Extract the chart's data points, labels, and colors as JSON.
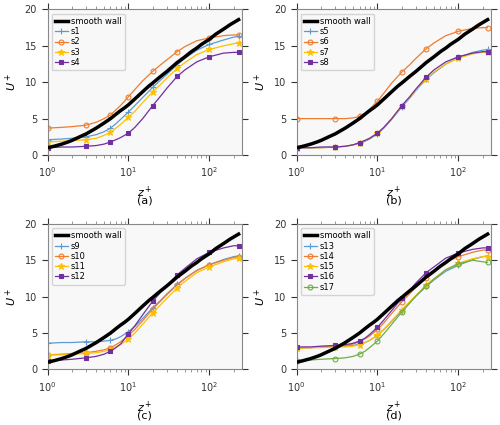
{
  "smooth_wall": {
    "z_plus": [
      1.0,
      1.2,
      1.5,
      1.8,
      2.0,
      2.5,
      3.0,
      4.0,
      5.0,
      6.0,
      7.0,
      8.0,
      9.0,
      10.0,
      12.0,
      15.0,
      18.0,
      20.0,
      25.0,
      30.0,
      40.0,
      50.0,
      60.0,
      70.0,
      80.0,
      100.0,
      120.0,
      150.0,
      180.0,
      200.0,
      230.0
    ],
    "U_plus": [
      1.0,
      1.2,
      1.5,
      1.8,
      2.0,
      2.5,
      2.9,
      3.7,
      4.4,
      5.0,
      5.6,
      6.1,
      6.5,
      6.9,
      7.7,
      8.7,
      9.5,
      9.9,
      10.8,
      11.5,
      12.7,
      13.5,
      14.2,
      14.7,
      15.2,
      15.9,
      16.6,
      17.3,
      17.9,
      18.2,
      18.6
    ]
  },
  "subplots": [
    {
      "label": "(a)",
      "series": [
        {
          "name": "s1",
          "color": "#5b9bd5",
          "marker": "+",
          "markevery": 3,
          "z": [
            1.0,
            1.5,
            2.0,
            3.0,
            4.0,
            5.0,
            6.0,
            7.0,
            8.0,
            10.0,
            12.0,
            15.0,
            20.0,
            25.0,
            30.0,
            40.0,
            50.0,
            70.0,
            100.0,
            150.0,
            200.0,
            230.0
          ],
          "U": [
            2.1,
            2.2,
            2.3,
            2.5,
            2.8,
            3.2,
            3.7,
            4.3,
            4.9,
            5.9,
            6.8,
            7.9,
            9.3,
            10.3,
            11.1,
            12.4,
            13.3,
            14.4,
            15.2,
            15.8,
            16.2,
            16.3
          ]
        },
        {
          "name": "s2",
          "color": "#ed7d31",
          "marker": "o",
          "markevery": 3,
          "z": [
            1.0,
            1.5,
            2.0,
            3.0,
            4.0,
            5.0,
            6.0,
            7.0,
            8.0,
            10.0,
            12.0,
            15.0,
            20.0,
            25.0,
            30.0,
            40.0,
            50.0,
            70.0,
            100.0,
            150.0,
            200.0,
            230.0
          ],
          "U": [
            3.7,
            3.8,
            3.9,
            4.1,
            4.5,
            5.0,
            5.5,
            6.2,
            6.8,
            8.0,
            9.0,
            10.2,
            11.5,
            12.4,
            13.1,
            14.2,
            14.9,
            15.7,
            16.1,
            16.4,
            16.5,
            16.5
          ]
        },
        {
          "name": "s3",
          "color": "#ffc000",
          "marker": "*",
          "markevery": 3,
          "z": [
            1.0,
            1.5,
            2.0,
            3.0,
            4.0,
            5.0,
            6.0,
            7.0,
            8.0,
            10.0,
            12.0,
            15.0,
            20.0,
            25.0,
            30.0,
            40.0,
            50.0,
            70.0,
            100.0,
            150.0,
            200.0,
            230.0
          ],
          "U": [
            1.8,
            1.9,
            2.0,
            2.1,
            2.3,
            2.7,
            3.1,
            3.7,
            4.2,
            5.2,
            6.0,
            7.2,
            8.7,
            9.7,
            10.6,
            11.9,
            12.7,
            13.8,
            14.5,
            15.0,
            15.3,
            15.4
          ]
        },
        {
          "name": "s4",
          "color": "#7030a0",
          "marker": "s",
          "markevery": 3,
          "z": [
            1.0,
            1.5,
            2.0,
            3.0,
            4.0,
            5.0,
            6.0,
            7.0,
            8.0,
            10.0,
            12.0,
            15.0,
            20.0,
            25.0,
            30.0,
            40.0,
            50.0,
            70.0,
            100.0,
            150.0,
            200.0,
            230.0
          ],
          "U": [
            1.0,
            1.1,
            1.1,
            1.2,
            1.3,
            1.5,
            1.8,
            2.1,
            2.4,
            3.0,
            3.8,
            5.0,
            6.8,
            8.1,
            9.2,
            10.8,
            11.7,
            12.8,
            13.5,
            14.0,
            14.1,
            14.1
          ]
        }
      ]
    },
    {
      "label": "(b)",
      "series": [
        {
          "name": "s5",
          "color": "#5b9bd5",
          "marker": "+",
          "markevery": 3,
          "z": [
            1.0,
            1.5,
            2.0,
            3.0,
            4.0,
            5.0,
            6.0,
            7.0,
            8.0,
            10.0,
            12.0,
            15.0,
            20.0,
            25.0,
            30.0,
            40.0,
            50.0,
            70.0,
            100.0,
            150.0,
            200.0,
            230.0
          ],
          "U": [
            1.0,
            1.0,
            1.0,
            1.1,
            1.2,
            1.4,
            1.6,
            1.9,
            2.2,
            2.9,
            3.7,
            4.9,
            6.6,
            7.8,
            8.9,
            10.4,
            11.3,
            12.5,
            13.4,
            14.1,
            14.4,
            14.5
          ]
        },
        {
          "name": "s6",
          "color": "#ed7d31",
          "marker": "o",
          "markevery": 3,
          "z": [
            1.0,
            1.5,
            2.0,
            3.0,
            4.0,
            5.0,
            6.0,
            7.0,
            8.0,
            10.0,
            12.0,
            15.0,
            20.0,
            25.0,
            30.0,
            40.0,
            50.0,
            70.0,
            100.0,
            150.0,
            200.0,
            230.0
          ],
          "U": [
            5.0,
            5.0,
            5.0,
            5.0,
            5.0,
            5.1,
            5.3,
            5.7,
            6.3,
            7.4,
            8.5,
            9.9,
            11.4,
            12.4,
            13.3,
            14.6,
            15.4,
            16.4,
            17.0,
            17.4,
            17.5,
            17.5
          ]
        },
        {
          "name": "s7",
          "color": "#ffc000",
          "marker": "*",
          "markevery": 3,
          "z": [
            1.0,
            1.5,
            2.0,
            3.0,
            4.0,
            5.0,
            6.0,
            7.0,
            8.0,
            10.0,
            12.0,
            15.0,
            20.0,
            25.0,
            30.0,
            40.0,
            50.0,
            70.0,
            100.0,
            150.0,
            200.0,
            230.0
          ],
          "U": [
            1.0,
            1.0,
            1.0,
            1.1,
            1.2,
            1.4,
            1.7,
            2.0,
            2.3,
            3.0,
            3.8,
            5.0,
            6.7,
            7.9,
            9.0,
            10.5,
            11.4,
            12.5,
            13.3,
            13.9,
            14.1,
            14.2
          ]
        },
        {
          "name": "s8",
          "color": "#7030a0",
          "marker": "s",
          "markevery": 3,
          "z": [
            1.0,
            1.5,
            2.0,
            3.0,
            4.0,
            5.0,
            6.0,
            7.0,
            8.0,
            10.0,
            12.0,
            15.0,
            20.0,
            25.0,
            30.0,
            40.0,
            50.0,
            70.0,
            100.0,
            150.0,
            200.0,
            230.0
          ],
          "U": [
            1.0,
            1.0,
            1.1,
            1.1,
            1.2,
            1.4,
            1.7,
            2.0,
            2.3,
            3.0,
            3.8,
            5.0,
            6.8,
            8.0,
            9.1,
            10.7,
            11.7,
            12.8,
            13.5,
            14.0,
            14.2,
            14.2
          ]
        }
      ]
    },
    {
      "label": "(c)",
      "series": [
        {
          "name": "s9",
          "color": "#5b9bd5",
          "marker": "+",
          "markevery": 3,
          "z": [
            1.0,
            1.5,
            2.0,
            3.0,
            4.0,
            5.0,
            6.0,
            7.0,
            8.0,
            10.0,
            12.0,
            15.0,
            20.0,
            25.0,
            30.0,
            40.0,
            50.0,
            70.0,
            100.0,
            150.0,
            200.0,
            230.0
          ],
          "U": [
            3.6,
            3.7,
            3.7,
            3.8,
            3.8,
            3.9,
            4.0,
            4.2,
            4.5,
            5.2,
            5.9,
            7.0,
            8.5,
            9.5,
            10.4,
            11.7,
            12.5,
            13.6,
            14.4,
            15.1,
            15.5,
            15.6
          ]
        },
        {
          "name": "s10",
          "color": "#ed7d31",
          "marker": "o",
          "markevery": 3,
          "z": [
            1.0,
            1.5,
            2.0,
            3.0,
            4.0,
            5.0,
            6.0,
            7.0,
            8.0,
            10.0,
            12.0,
            15.0,
            20.0,
            25.0,
            30.0,
            40.0,
            50.0,
            70.0,
            100.0,
            150.0,
            200.0,
            230.0
          ],
          "U": [
            2.0,
            2.1,
            2.2,
            2.3,
            2.5,
            2.7,
            3.0,
            3.4,
            3.8,
            4.7,
            5.5,
            6.7,
            8.3,
            9.4,
            10.3,
            11.6,
            12.5,
            13.6,
            14.4,
            15.0,
            15.4,
            15.5
          ]
        },
        {
          "name": "s11",
          "color": "#ffc000",
          "marker": "*",
          "markevery": 3,
          "z": [
            1.0,
            1.5,
            2.0,
            3.0,
            4.0,
            5.0,
            6.0,
            7.0,
            8.0,
            10.0,
            12.0,
            15.0,
            20.0,
            25.0,
            30.0,
            40.0,
            50.0,
            70.0,
            100.0,
            150.0,
            200.0,
            230.0
          ],
          "U": [
            2.0,
            2.0,
            2.1,
            2.2,
            2.3,
            2.5,
            2.7,
            3.1,
            3.4,
            4.2,
            5.0,
            6.2,
            7.8,
            8.9,
            9.8,
            11.2,
            12.1,
            13.3,
            14.1,
            14.8,
            15.2,
            15.3
          ]
        },
        {
          "name": "s12",
          "color": "#7030a0",
          "marker": "s",
          "markevery": 3,
          "z": [
            1.0,
            1.5,
            2.0,
            3.0,
            4.0,
            5.0,
            6.0,
            7.0,
            8.0,
            10.0,
            12.0,
            15.0,
            20.0,
            25.0,
            30.0,
            40.0,
            50.0,
            70.0,
            100.0,
            150.0,
            200.0,
            230.0
          ],
          "U": [
            1.2,
            1.3,
            1.4,
            1.6,
            1.8,
            2.1,
            2.5,
            3.0,
            3.5,
            4.9,
            6.0,
            7.5,
            9.4,
            10.6,
            11.5,
            13.0,
            13.9,
            15.2,
            16.1,
            16.7,
            17.0,
            17.0
          ]
        }
      ]
    },
    {
      "label": "(d)",
      "series": [
        {
          "name": "s13",
          "color": "#5b9bd5",
          "marker": "+",
          "markevery": 3,
          "z": [
            1.0,
            1.5,
            2.0,
            3.0,
            4.0,
            5.0,
            6.0,
            7.0,
            8.0,
            10.0,
            12.0,
            15.0,
            20.0,
            25.0,
            30.0,
            40.0,
            50.0,
            70.0,
            100.0,
            150.0,
            200.0,
            230.0
          ],
          "U": [
            3.0,
            3.0,
            3.1,
            3.1,
            3.2,
            3.3,
            3.5,
            3.7,
            4.0,
            4.7,
            5.5,
            6.6,
            8.1,
            9.2,
            10.1,
            11.4,
            12.3,
            13.5,
            14.3,
            15.1,
            15.5,
            15.6
          ]
        },
        {
          "name": "s14",
          "color": "#ed7d31",
          "marker": "o",
          "markevery": 3,
          "z": [
            1.0,
            1.5,
            2.0,
            3.0,
            4.0,
            5.0,
            6.0,
            7.0,
            8.0,
            10.0,
            12.0,
            15.0,
            20.0,
            25.0,
            30.0,
            40.0,
            50.0,
            70.0,
            100.0,
            150.0,
            200.0,
            230.0
          ],
          "U": [
            3.0,
            3.0,
            3.1,
            3.2,
            3.3,
            3.5,
            3.8,
            4.2,
            4.6,
            5.5,
            6.4,
            7.7,
            9.3,
            10.4,
            11.3,
            12.6,
            13.5,
            14.7,
            15.5,
            16.1,
            16.4,
            16.4
          ]
        },
        {
          "name": "s15",
          "color": "#ffc000",
          "marker": "*",
          "markevery": 3,
          "z": [
            1.0,
            1.5,
            2.0,
            3.0,
            4.0,
            5.0,
            6.0,
            7.0,
            8.0,
            10.0,
            12.0,
            15.0,
            20.0,
            25.0,
            30.0,
            40.0,
            50.0,
            70.0,
            100.0,
            150.0,
            200.0,
            230.0
          ],
          "U": [
            2.9,
            3.0,
            3.0,
            3.1,
            3.1,
            3.2,
            3.4,
            3.7,
            4.0,
            4.7,
            5.5,
            6.7,
            8.2,
            9.3,
            10.2,
            11.6,
            12.5,
            13.7,
            14.6,
            15.2,
            15.5,
            15.5
          ]
        },
        {
          "name": "s16",
          "color": "#7030a0",
          "marker": "s",
          "markevery": 3,
          "z": [
            1.0,
            1.5,
            2.0,
            3.0,
            4.0,
            5.0,
            6.0,
            7.0,
            8.0,
            10.0,
            12.0,
            15.0,
            20.0,
            25.0,
            30.0,
            40.0,
            50.0,
            70.0,
            100.0,
            150.0,
            200.0,
            230.0
          ],
          "U": [
            3.1,
            3.1,
            3.2,
            3.3,
            3.4,
            3.6,
            3.9,
            4.3,
            4.8,
            5.8,
            6.8,
            8.1,
            9.8,
            10.9,
            11.9,
            13.3,
            14.1,
            15.3,
            16.0,
            16.5,
            16.7,
            16.7
          ]
        },
        {
          "name": "s17",
          "color": "#70ad47",
          "marker": "o",
          "markevery": 3,
          "z": [
            1.0,
            1.5,
            2.0,
            3.0,
            4.0,
            5.0,
            6.0,
            7.0,
            8.0,
            10.0,
            12.0,
            15.0,
            20.0,
            25.0,
            30.0,
            40.0,
            50.0,
            70.0,
            100.0,
            150.0,
            200.0,
            230.0
          ],
          "U": [
            1.2,
            1.3,
            1.4,
            1.5,
            1.6,
            1.8,
            2.1,
            2.5,
            3.0,
            3.9,
            4.9,
            6.2,
            7.9,
            9.1,
            10.1,
            11.5,
            12.4,
            13.7,
            14.5,
            15.0,
            14.8,
            14.7
          ]
        }
      ]
    }
  ],
  "xlim": [
    1.0,
    250.0
  ],
  "ylim": [
    0,
    20
  ],
  "smooth_wall_color": "#000000",
  "smooth_wall_lw": 2.5,
  "open_markers": [
    "o"
  ],
  "bg_color": "#f8f8f8"
}
